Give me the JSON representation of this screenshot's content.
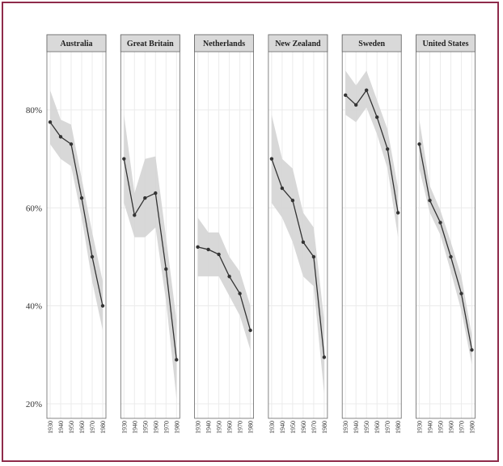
{
  "chart_data": {
    "type": "line",
    "title": "",
    "xlabel": "",
    "ylabel": "",
    "x": [
      1930,
      1940,
      1950,
      1960,
      1970,
      1980
    ],
    "x_tick_labels": [
      "1930",
      "1940",
      "1950",
      "1960",
      "1970",
      "1980"
    ],
    "ylim": [
      18,
      93
    ],
    "y_ticks": [
      20,
      40,
      60,
      80
    ],
    "y_tick_labels": [
      "20%",
      "40%",
      "60%",
      "80%"
    ],
    "grid": true,
    "confidence_band": true,
    "colors": {
      "line": "#333333",
      "band": "#d4d4d4",
      "strip": "#d9d9d9",
      "grid": "#ebebeb",
      "frame": "#8e2a4a"
    },
    "series": [
      {
        "name": "Australia",
        "values": [
          77.5,
          74.5,
          73,
          62,
          50,
          40
        ],
        "lower": [
          73,
          70,
          68.5,
          58,
          45,
          35
        ],
        "upper": [
          84,
          78,
          77,
          66,
          55,
          45
        ]
      },
      {
        "name": "Great Britain",
        "values": [
          70,
          58.5,
          62,
          63,
          47.5,
          29
        ],
        "lower": [
          61,
          54,
          54,
          56,
          41,
          21
        ],
        "upper": [
          79,
          63,
          70,
          70.5,
          54,
          37
        ]
      },
      {
        "name": "Netherlands",
        "values": [
          52,
          51.5,
          50.5,
          46,
          42.5,
          35
        ],
        "lower": [
          46,
          46,
          46,
          42,
          38,
          31
        ],
        "upper": [
          58,
          55,
          55,
          50,
          47,
          40
        ]
      },
      {
        "name": "New Zealand",
        "values": [
          70,
          64,
          61.5,
          53,
          50,
          29.5
        ],
        "lower": [
          61,
          58,
          53,
          46,
          44,
          22
        ],
        "upper": [
          79,
          70,
          68,
          59,
          56,
          37
        ]
      },
      {
        "name": "Sweden",
        "values": [
          83,
          81,
          84,
          78.5,
          72,
          59
        ],
        "lower": [
          79,
          77.5,
          80.5,
          75,
          68,
          54
        ],
        "upper": [
          88,
          85,
          88,
          82,
          76,
          64
        ]
      },
      {
        "name": "United States",
        "values": [
          73,
          61.5,
          57,
          50,
          42.5,
          31
        ],
        "lower": [
          68,
          59,
          54.5,
          47,
          39,
          28
        ],
        "upper": [
          78,
          64.5,
          59.5,
          53,
          46,
          34
        ]
      }
    ]
  }
}
